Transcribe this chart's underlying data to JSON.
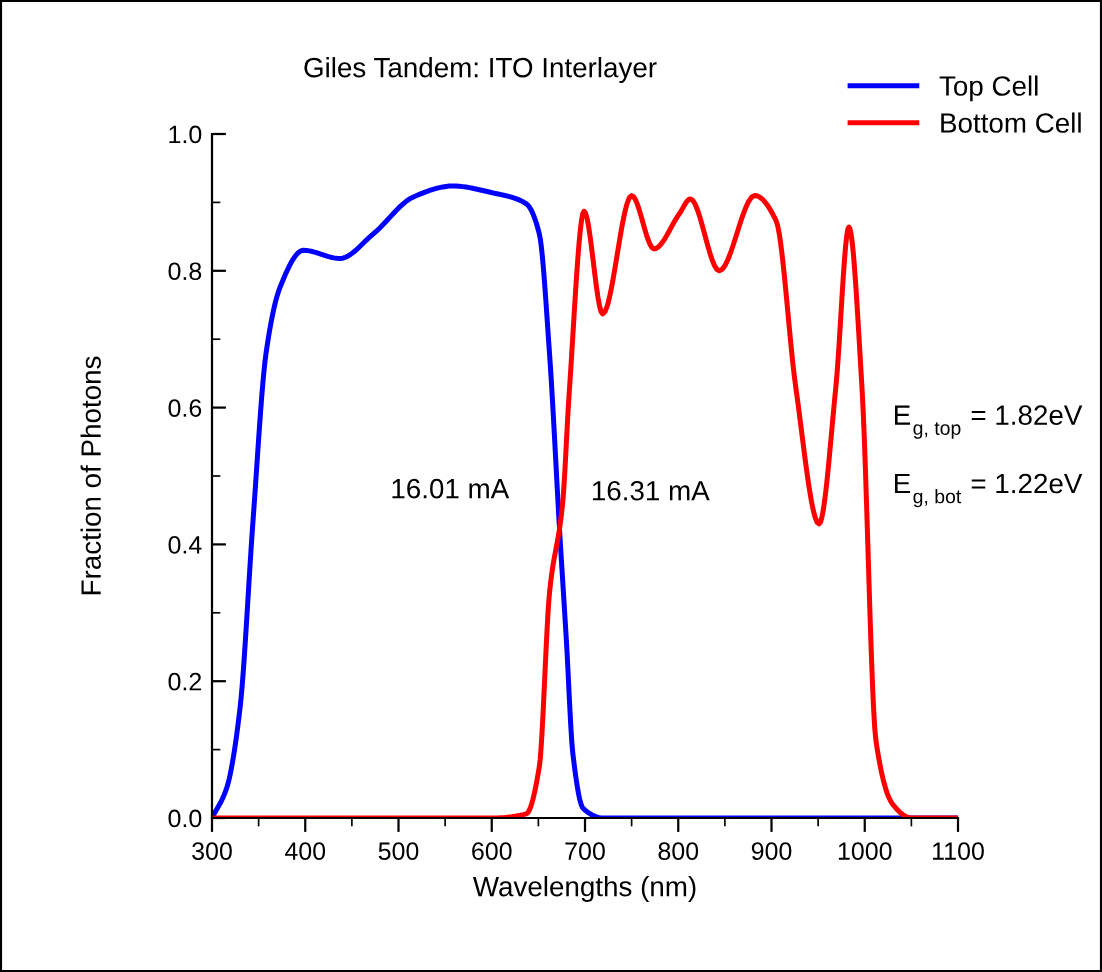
{
  "chart_data": {
    "type": "line",
    "title": "Giles Tandem: ITO Interlayer",
    "xlabel": "Wavelengths (nm)",
    "ylabel": "Fraction of Photons",
    "series": [
      {
        "name": "Top Cell",
        "color": "#0000ff",
        "x": [
          300,
          316,
          330,
          344,
          358,
          373,
          398,
          437,
          473,
          516,
          558,
          601,
          637,
          651,
          662,
          673,
          680,
          687,
          698,
          720,
          800,
          1100
        ],
        "values": [
          0,
          0.045,
          0.16,
          0.435,
          0.68,
          0.776,
          0.83,
          0.818,
          0.854,
          0.908,
          0.924,
          0.914,
          0.898,
          0.854,
          0.678,
          0.415,
          0.26,
          0.094,
          0.014,
          0,
          0,
          0
        ]
      },
      {
        "name": "Bottom Cell",
        "color": "#ff0000",
        "x": [
          300,
          600,
          637,
          651,
          662,
          676,
          683,
          699,
          719,
          750,
          774,
          801,
          813,
          844,
          882,
          905,
          926,
          951,
          969,
          983,
          997,
          1012,
          1030,
          1050,
          1100
        ],
        "values": [
          0,
          0,
          0.006,
          0.075,
          0.33,
          0.46,
          0.62,
          0.887,
          0.737,
          0.91,
          0.832,
          0.883,
          0.905,
          0.8,
          0.91,
          0.873,
          0.63,
          0.43,
          0.63,
          0.864,
          0.63,
          0.113,
          0.02,
          0,
          0
        ]
      }
    ],
    "xlim": [
      300,
      1100
    ],
    "xticks": [
      300,
      400,
      500,
      600,
      700,
      800,
      900,
      1000,
      1100
    ],
    "ylim": [
      0,
      1.0
    ],
    "yticks": [
      {
        "value": 0,
        "label": "0.0"
      },
      {
        "value": 0.2,
        "label": "0.2"
      },
      {
        "value": 0.4,
        "label": "0.4"
      },
      {
        "value": 0.6,
        "label": "0.6"
      },
      {
        "value": 0.8,
        "label": "0.8"
      },
      {
        "value": 1.0,
        "label": "1.0"
      }
    ],
    "annotations": [
      "16.01 mA",
      "16.31 mA",
      "E$_{g, top}$ = 1.82eV",
      "E$_{g, bot}$ = 1.22eV"
    ],
    "legend": "top right",
    "grid": false,
    "marker": "none",
    "line_style": "solid"
  }
}
